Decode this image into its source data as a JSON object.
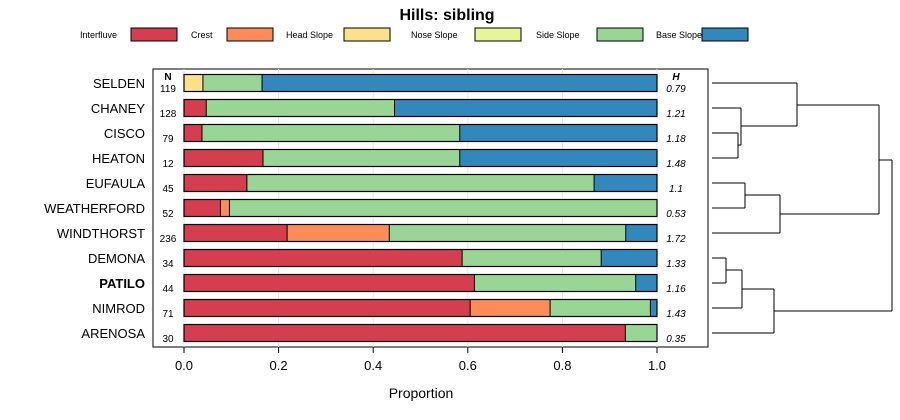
{
  "chart_data": {
    "type": "stacked-bar-horizontal",
    "title": "Hills: sibling",
    "xlabel": "Proportion",
    "xlim": [
      0,
      1
    ],
    "xticks": [
      "0.0",
      "0.2",
      "0.4",
      "0.6",
      "0.8",
      "1.0"
    ],
    "n_header": "N",
    "h_header": "H",
    "legend": [
      {
        "label": "Interfluve",
        "color": "#D53E4F"
      },
      {
        "label": "Crest",
        "color": "#FC8D59"
      },
      {
        "label": "Head Slope",
        "color": "#FEE08B"
      },
      {
        "label": "Nose Slope",
        "color": "#E6F598"
      },
      {
        "label": "Side Slope",
        "color": "#99D594"
      },
      {
        "label": "Base Slope",
        "color": "#3288BD"
      }
    ],
    "rows": [
      {
        "name": "SELDEN",
        "n": "119",
        "h": "0.79",
        "bold": false,
        "values": [
          0,
          0,
          0.04,
          0,
          0.125,
          0.835
        ]
      },
      {
        "name": "CHANEY",
        "n": "128",
        "h": "1.21",
        "bold": false,
        "values": [
          0.047,
          0,
          0,
          0,
          0.398,
          0.555
        ]
      },
      {
        "name": "CISCO",
        "n": "79",
        "h": "1.18",
        "bold": false,
        "values": [
          0.038,
          0,
          0,
          0,
          0.545,
          0.417
        ]
      },
      {
        "name": "HEATON",
        "n": "12",
        "h": "1.48",
        "bold": false,
        "values": [
          0.167,
          0,
          0,
          0,
          0.416,
          0.417
        ]
      },
      {
        "name": "EUFAULA",
        "n": "45",
        "h": "1.1",
        "bold": false,
        "values": [
          0.133,
          0,
          0,
          0,
          0.734,
          0.133
        ]
      },
      {
        "name": "WEATHERFORD",
        "n": "52",
        "h": "0.53",
        "bold": false,
        "values": [
          0.077,
          0.019,
          0,
          0,
          0.904,
          0
        ]
      },
      {
        "name": "WINDTHORST",
        "n": "236",
        "h": "1.72",
        "bold": false,
        "values": [
          0.218,
          0.216,
          0,
          0,
          0.5,
          0.066
        ]
      },
      {
        "name": "DEMONA",
        "n": "34",
        "h": "1.33",
        "bold": false,
        "values": [
          0.588,
          0,
          0,
          0,
          0.294,
          0.118
        ]
      },
      {
        "name": "PATILO",
        "n": "44",
        "h": "1.16",
        "bold": true,
        "values": [
          0.614,
          0,
          0,
          0,
          0.341,
          0.045
        ]
      },
      {
        "name": "NIMROD",
        "n": "71",
        "h": "1.43",
        "bold": false,
        "values": [
          0.605,
          0.169,
          0,
          0,
          0.212,
          0.014
        ]
      },
      {
        "name": "ARENOSA",
        "n": "30",
        "h": "0.35",
        "bold": false,
        "values": [
          0.933,
          0,
          0,
          0,
          0.067,
          0
        ]
      }
    ]
  }
}
